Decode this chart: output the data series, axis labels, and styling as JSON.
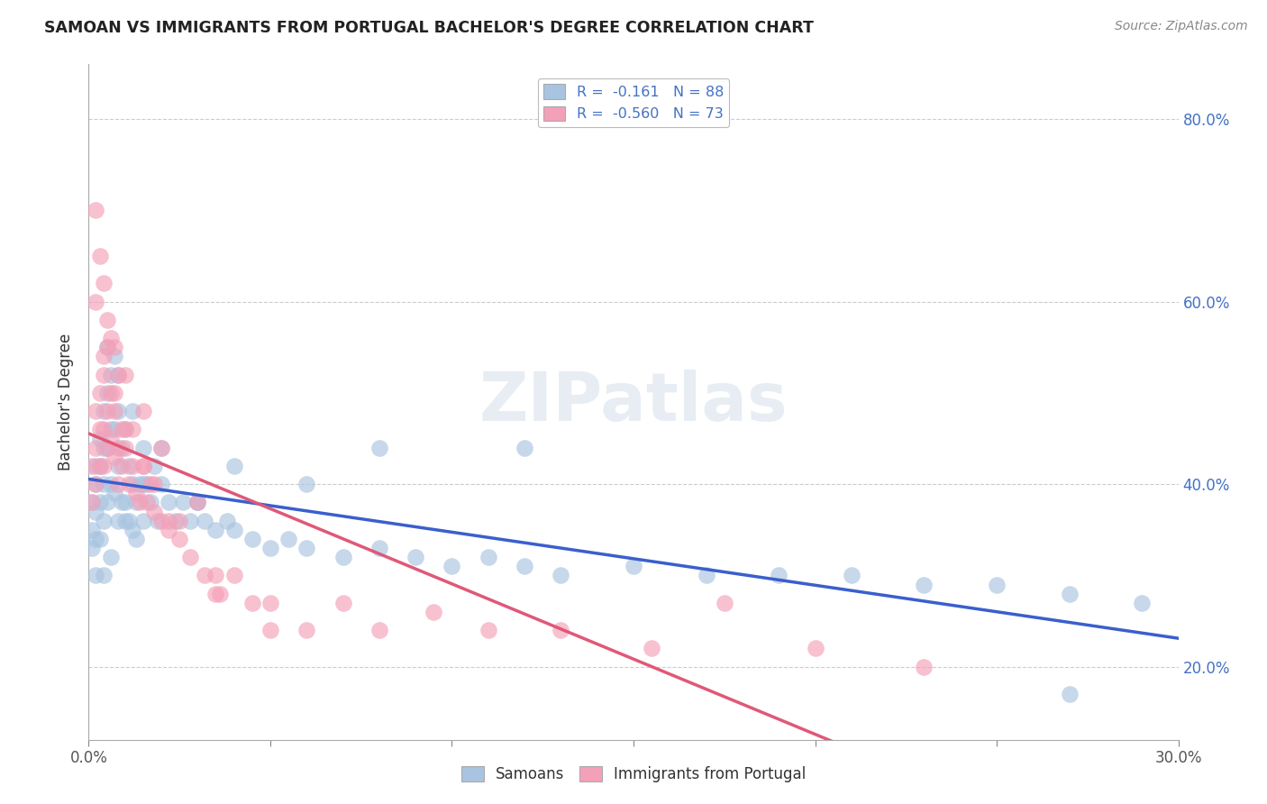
{
  "title": "SAMOAN VS IMMIGRANTS FROM PORTUGAL BACHELOR'S DEGREE CORRELATION CHART",
  "source": "Source: ZipAtlas.com",
  "ylabel": "Bachelor's Degree",
  "xlim": [
    0.0,
    0.3
  ],
  "ylim": [
    0.12,
    0.86
  ],
  "color_blue": "#a8c4e0",
  "color_pink": "#f4a0b8",
  "line_blue": "#3a5fcd",
  "line_pink": "#e05878",
  "legend_color": "#4472c4",
  "watermark": "ZIPatlas",
  "samoans_x": [
    0.001,
    0.001,
    0.001,
    0.002,
    0.002,
    0.002,
    0.002,
    0.003,
    0.003,
    0.003,
    0.003,
    0.004,
    0.004,
    0.004,
    0.004,
    0.005,
    0.005,
    0.005,
    0.006,
    0.006,
    0.006,
    0.007,
    0.007,
    0.007,
    0.008,
    0.008,
    0.008,
    0.009,
    0.009,
    0.01,
    0.01,
    0.011,
    0.011,
    0.012,
    0.012,
    0.013,
    0.013,
    0.014,
    0.015,
    0.015,
    0.016,
    0.017,
    0.018,
    0.019,
    0.02,
    0.022,
    0.024,
    0.026,
    0.028,
    0.03,
    0.032,
    0.035,
    0.038,
    0.04,
    0.045,
    0.05,
    0.055,
    0.06,
    0.07,
    0.08,
    0.09,
    0.1,
    0.11,
    0.12,
    0.13,
    0.15,
    0.17,
    0.19,
    0.21,
    0.23,
    0.25,
    0.27,
    0.29,
    0.002,
    0.004,
    0.006,
    0.01,
    0.015,
    0.02,
    0.03,
    0.04,
    0.06,
    0.08,
    0.12,
    0.27,
    0.005,
    0.008,
    0.012
  ],
  "samoans_y": [
    0.38,
    0.35,
    0.33,
    0.42,
    0.4,
    0.37,
    0.34,
    0.45,
    0.42,
    0.38,
    0.34,
    0.48,
    0.44,
    0.4,
    0.36,
    0.5,
    0.44,
    0.38,
    0.52,
    0.46,
    0.4,
    0.54,
    0.46,
    0.39,
    0.48,
    0.42,
    0.36,
    0.44,
    0.38,
    0.46,
    0.38,
    0.42,
    0.36,
    0.4,
    0.35,
    0.38,
    0.34,
    0.4,
    0.44,
    0.36,
    0.4,
    0.38,
    0.42,
    0.36,
    0.4,
    0.38,
    0.36,
    0.38,
    0.36,
    0.38,
    0.36,
    0.35,
    0.36,
    0.35,
    0.34,
    0.33,
    0.34,
    0.33,
    0.32,
    0.33,
    0.32,
    0.31,
    0.32,
    0.31,
    0.3,
    0.31,
    0.3,
    0.3,
    0.3,
    0.29,
    0.29,
    0.28,
    0.27,
    0.3,
    0.3,
    0.32,
    0.36,
    0.4,
    0.44,
    0.38,
    0.42,
    0.4,
    0.44,
    0.44,
    0.17,
    0.55,
    0.52,
    0.48
  ],
  "portugal_x": [
    0.001,
    0.001,
    0.002,
    0.002,
    0.002,
    0.003,
    0.003,
    0.003,
    0.004,
    0.004,
    0.004,
    0.005,
    0.005,
    0.005,
    0.006,
    0.006,
    0.007,
    0.007,
    0.008,
    0.008,
    0.009,
    0.009,
    0.01,
    0.011,
    0.012,
    0.013,
    0.014,
    0.015,
    0.016,
    0.017,
    0.018,
    0.02,
    0.022,
    0.025,
    0.028,
    0.032,
    0.036,
    0.04,
    0.045,
    0.05,
    0.06,
    0.07,
    0.08,
    0.095,
    0.11,
    0.13,
    0.155,
    0.175,
    0.2,
    0.23,
    0.003,
    0.005,
    0.007,
    0.01,
    0.015,
    0.02,
    0.03,
    0.002,
    0.004,
    0.006,
    0.008,
    0.012,
    0.018,
    0.025,
    0.035,
    0.05,
    0.002,
    0.004,
    0.007,
    0.01,
    0.015,
    0.022,
    0.035
  ],
  "portugal_y": [
    0.42,
    0.38,
    0.48,
    0.44,
    0.4,
    0.5,
    0.46,
    0.42,
    0.52,
    0.46,
    0.42,
    0.55,
    0.48,
    0.44,
    0.5,
    0.45,
    0.48,
    0.43,
    0.44,
    0.4,
    0.46,
    0.42,
    0.44,
    0.4,
    0.42,
    0.39,
    0.38,
    0.42,
    0.38,
    0.4,
    0.37,
    0.36,
    0.35,
    0.34,
    0.32,
    0.3,
    0.28,
    0.3,
    0.27,
    0.27,
    0.24,
    0.27,
    0.24,
    0.26,
    0.24,
    0.24,
    0.22,
    0.27,
    0.22,
    0.2,
    0.65,
    0.58,
    0.55,
    0.52,
    0.48,
    0.44,
    0.38,
    0.7,
    0.62,
    0.56,
    0.52,
    0.46,
    0.4,
    0.36,
    0.3,
    0.24,
    0.6,
    0.54,
    0.5,
    0.46,
    0.42,
    0.36,
    0.28
  ]
}
